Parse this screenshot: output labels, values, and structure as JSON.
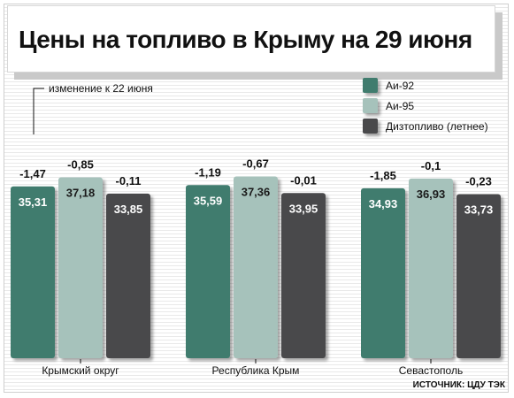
{
  "title": "Цены на топливо в Крыму на 29 июня",
  "annotation": "изменение к 22 июня",
  "source": "ИСТОЧНИК: ЦДУ ТЭК",
  "colors": {
    "series": [
      "#3f7b6e",
      "#a6c2bb",
      "#4a4a4c"
    ],
    "value_text": [
      "#ffffff",
      "#1a1a1a",
      "#ffffff"
    ]
  },
  "chart_data": {
    "type": "bar",
    "categories": [
      "Крымский округ",
      "Республика Крым",
      "Севастополь"
    ],
    "series": [
      {
        "name": "Аи-92",
        "values": [
          35.31,
          35.59,
          34.93
        ],
        "change_labels": [
          "-1,47",
          "-1,19",
          "-1,85"
        ],
        "value_labels": [
          "35,31",
          "35,59",
          "34,93"
        ]
      },
      {
        "name": "Аи-95",
        "values": [
          37.18,
          37.36,
          36.93
        ],
        "change_labels": [
          "-0,85",
          "-0,67",
          "-0,1"
        ],
        "value_labels": [
          "37,18",
          "37,36",
          "36,93"
        ]
      },
      {
        "name": "Дизтопливо (летнее)",
        "values": [
          33.85,
          33.95,
          33.73
        ],
        "change_labels": [
          "-0,11",
          "-0,01",
          "-0,23"
        ],
        "value_labels": [
          "33,85",
          "33,95",
          "33,73"
        ]
      }
    ],
    "legend_position": "top-right",
    "grid": false
  }
}
